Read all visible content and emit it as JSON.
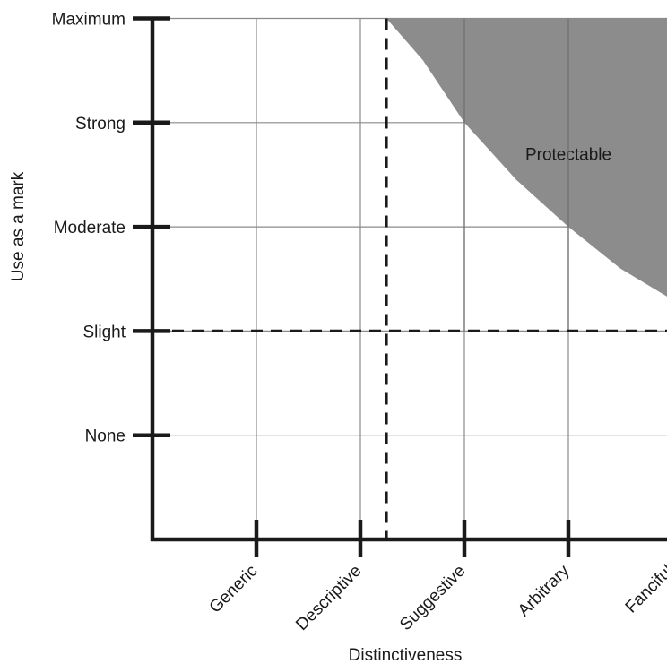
{
  "chart_data": {
    "type": "area",
    "title": "",
    "xlabel": "Distinctiveness",
    "ylabel": "Use as a mark",
    "x_categories": [
      "Generic",
      "Descriptive",
      "Suggestive",
      "Arbitrary",
      "Fanciful"
    ],
    "y_categories": [
      "None",
      "Slight",
      "Moderate",
      "Strong",
      "Maximum"
    ],
    "grid": true,
    "region_label": "Protectable",
    "region_fill": "#8c8c8c",
    "threshold_x": 2.25,
    "threshold_y": 2,
    "boundary": [
      {
        "x": 2.25,
        "y": 5
      },
      {
        "x": 2.6,
        "y": 4.6
      },
      {
        "x": 3,
        "y": 4.0
      },
      {
        "x": 3.5,
        "y": 3.45
      },
      {
        "x": 4,
        "y": 3.0
      },
      {
        "x": 4.5,
        "y": 2.6
      },
      {
        "x": 5,
        "y": 2.3
      },
      {
        "x": 5.45,
        "y": 2.1
      }
    ]
  }
}
